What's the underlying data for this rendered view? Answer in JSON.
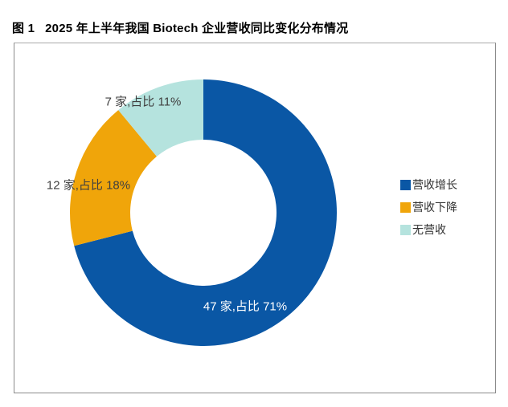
{
  "header": {
    "figure_label": "图 1",
    "title_text": "2025 年上半年我国 Biotech 企业营收同比变化分布情况"
  },
  "chart_data": {
    "type": "pie",
    "subtype": "donut",
    "title": "图 1 2025 年上半年我国 Biotech 企业营收同比变化分布情况",
    "unit": "家",
    "start_angle_deg": 0,
    "direction": "clockwise",
    "inner_radius_ratio": 0.55,
    "legend_position": "right",
    "series": [
      {
        "name": "营收增长",
        "count": 47,
        "percent": 71,
        "color": "#0A57A5",
        "label": "47 家,占比 71%",
        "label_color": "#ffffff",
        "label_placement": "inside"
      },
      {
        "name": "营收下降",
        "count": 12,
        "percent": 18,
        "color": "#F0A50A",
        "label": "12 家,占比 18%",
        "label_color": "#404040",
        "label_placement": "outside"
      },
      {
        "name": "无营收",
        "count": 7,
        "percent": 11,
        "color": "#B5E3DE",
        "label": "7 家,占比 11%",
        "label_color": "#404040",
        "label_placement": "outside"
      }
    ],
    "legend_items": [
      "营收增长",
      "营收下降",
      "无营收"
    ]
  }
}
